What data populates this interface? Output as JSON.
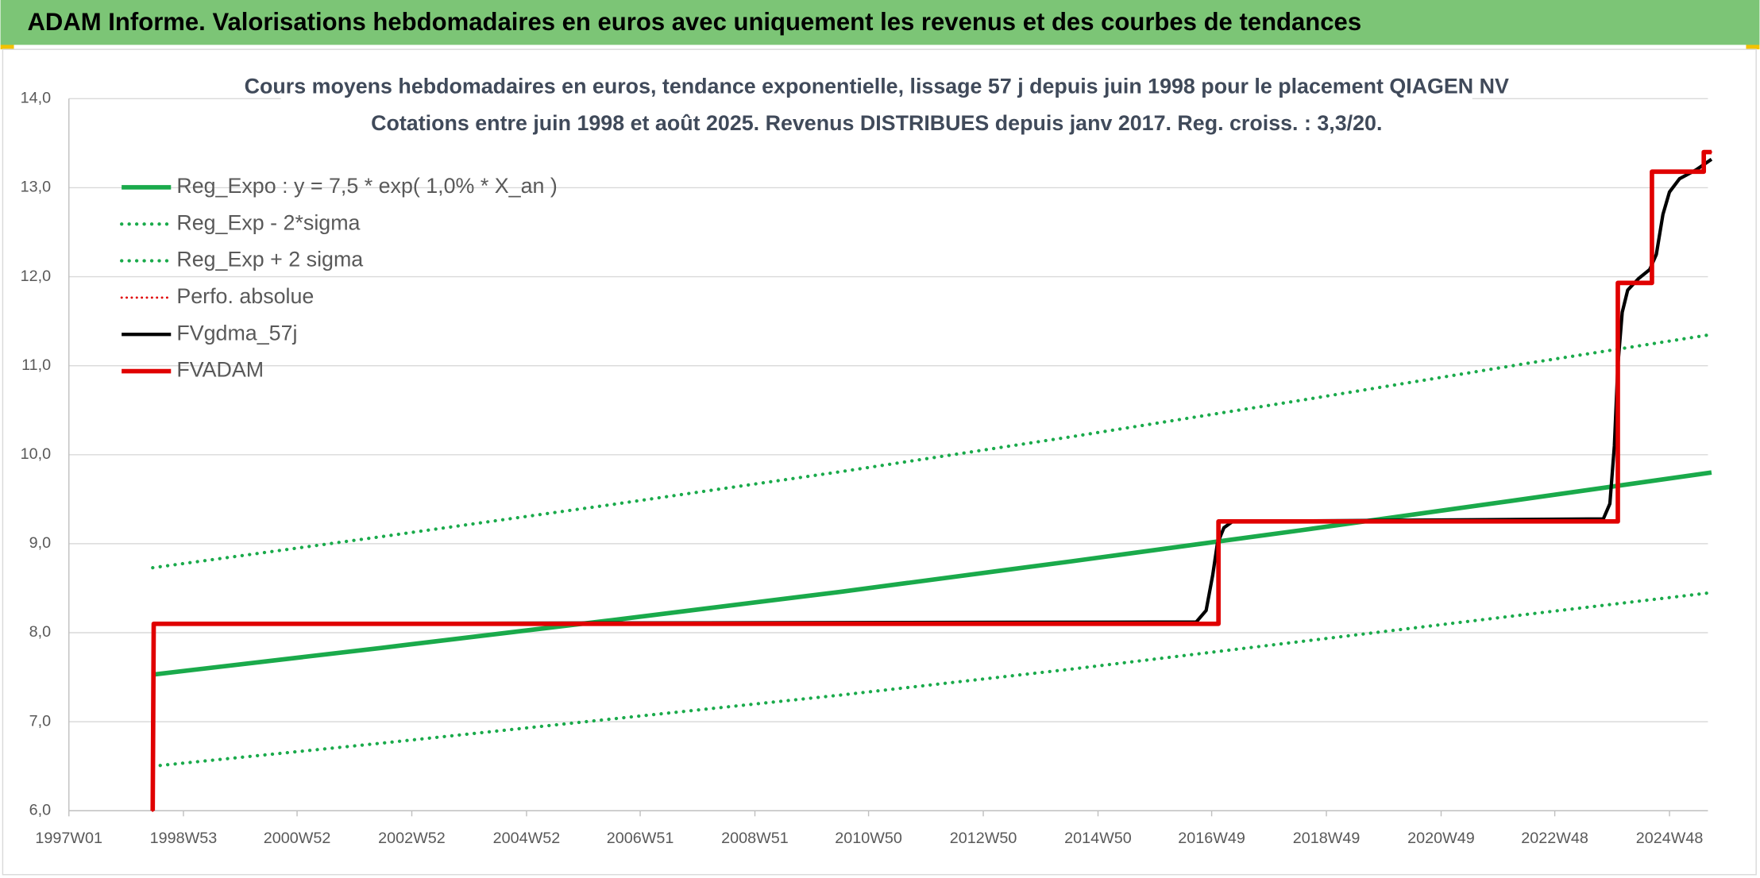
{
  "header": {
    "title": "ADAM Informe. Valorisations hebdomadaires en euros avec uniquement les revenus et des courbes de tendances"
  },
  "chart_data": {
    "type": "line",
    "title": "Cours moyens hebdomadaires en euros, tendance exponentielle, lissage 57 j depuis juin 1998 pour le placement QIAGEN NV",
    "subtitle": "Cotations entre juin 1998 et août 2025. Revenus DISTRIBUES depuis janv 2017. Reg. croiss. : 3,3/20.",
    "xtick_labels": [
      "1997W01",
      "1998W53",
      "2000W52",
      "2002W52",
      "2004W52",
      "2006W51",
      "2008W51",
      "2010W50",
      "2012W50",
      "2014W50",
      "2016W49",
      "2018W49",
      "2020W49",
      "2022W48",
      "2024W48"
    ],
    "ylim": [
      6,
      14
    ],
    "yticks": [
      {
        "value": 6,
        "label": "6,0"
      },
      {
        "value": 7,
        "label": "7,0"
      },
      {
        "value": 8,
        "label": "8,0"
      },
      {
        "value": 9,
        "label": "9,0"
      },
      {
        "value": 10,
        "label": "10,0"
      },
      {
        "value": 11,
        "label": "11,0"
      },
      {
        "value": 12,
        "label": "12,0"
      },
      {
        "value": 13,
        "label": "13,0"
      },
      {
        "value": 14,
        "label": "14,0"
      }
    ],
    "grid": true,
    "legend": "top-left",
    "series": [
      {
        "name": "Reg_Expo : y = 7,5 * exp( 1,0% *  X_an )",
        "color": "#1aaa4b",
        "style": "solid",
        "width": 4,
        "x": [
          "1998W25",
          "2002W25",
          "2006W25",
          "2010W25",
          "2014W25",
          "2018W25",
          "2022W25",
          "2025W34"
        ],
        "values": [
          7.53,
          7.83,
          8.14,
          8.46,
          8.8,
          9.15,
          9.51,
          9.8
        ]
      },
      {
        "name": "Reg_Exp - 2*sigma",
        "color": "#1aaa4b",
        "style": "dotted",
        "width": 3,
        "x": [
          "1998W25",
          "2002W25",
          "2006W25",
          "2010W25",
          "2014W25",
          "2018W25",
          "2022W25",
          "2025W34"
        ],
        "values": [
          6.5,
          6.76,
          7.03,
          7.3,
          7.59,
          7.9,
          8.21,
          8.45
        ]
      },
      {
        "name": "Reg_Exp + 2 sigma",
        "color": "#1aaa4b",
        "style": "dotted",
        "width": 3,
        "x": [
          "1998W25",
          "2002W25",
          "2006W25",
          "2010W25",
          "2014W25",
          "2018W25",
          "2022W25",
          "2025W34"
        ],
        "values": [
          8.73,
          9.08,
          9.44,
          9.81,
          10.2,
          10.61,
          11.03,
          11.35
        ]
      },
      {
        "name": "Perfo. absolue",
        "color": "#e00000",
        "style": "dotted",
        "width": 2,
        "x": [
          "1998W25",
          "1998W26",
          "2017W03",
          "2017W03",
          "2024W01",
          "2024W01",
          "2024W32",
          "2024W32",
          "2025W27",
          "2025W27",
          "2025W34"
        ],
        "values": [
          6.0,
          8.1,
          8.1,
          9.25,
          9.25,
          11.93,
          11.93,
          13.18,
          13.18,
          13.4,
          13.4
        ]
      },
      {
        "name": "FVgdma_57j",
        "color": "#000000",
        "style": "solid",
        "width": 3,
        "x": [
          "1998W26",
          "2016W35",
          "2016W44",
          "2016W50",
          "2017W02",
          "2017W08",
          "2017W16",
          "2023W40",
          "2023W46",
          "2023W50",
          "2024W01",
          "2024W05",
          "2024W10",
          "2024W20",
          "2024W30",
          "2024W36",
          "2024W42",
          "2024W48",
          "2025W05",
          "2025W20",
          "2025W34"
        ],
        "values": [
          8.1,
          8.12,
          8.25,
          8.65,
          9.0,
          9.18,
          9.25,
          9.28,
          9.45,
          10.1,
          11.0,
          11.6,
          11.85,
          11.98,
          12.08,
          12.25,
          12.7,
          12.95,
          13.1,
          13.2,
          13.32
        ]
      },
      {
        "name": "FVADAM",
        "color": "#e00000",
        "style": "solid",
        "width": 4,
        "x": [
          "1998W25",
          "1998W26",
          "2017W03",
          "2017W03",
          "2024W01",
          "2024W01",
          "2024W32",
          "2024W32",
          "2025W27",
          "2025W27",
          "2025W34"
        ],
        "values": [
          6.0,
          8.1,
          8.1,
          9.25,
          9.25,
          11.93,
          11.93,
          13.18,
          13.18,
          13.4,
          13.4
        ]
      }
    ]
  }
}
